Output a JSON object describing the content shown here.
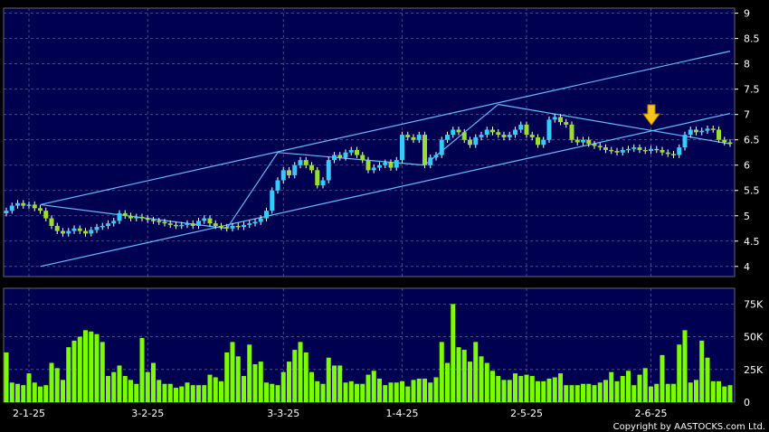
{
  "chart_data": [
    {
      "type": "candlestick",
      "ylim": [
        3.8,
        9.1
      ],
      "yticks": [
        "4",
        "4.5",
        "5",
        "5.5",
        "6",
        "6.5",
        "7",
        "7.5",
        "8",
        "8.5",
        "9"
      ],
      "xticks": [
        "2-1-25",
        "3-2-25",
        "3-3-25",
        "1-4-25",
        "2-5-25",
        "2-6-25"
      ],
      "grid": true,
      "close": [
        5.1,
        5.2,
        5.25,
        5.2,
        5.22,
        5.15,
        5.1,
        4.95,
        4.8,
        4.7,
        4.65,
        4.7,
        4.75,
        4.7,
        4.65,
        4.72,
        4.78,
        4.8,
        4.85,
        4.9,
        5.05,
        5.0,
        4.95,
        4.98,
        4.95,
        4.92,
        4.9,
        4.88,
        4.85,
        4.82,
        4.8,
        4.82,
        4.85,
        4.8,
        4.9,
        4.95,
        4.85,
        4.8,
        4.78,
        4.75,
        4.8,
        4.78,
        4.82,
        4.85,
        4.88,
        4.95,
        5.1,
        5.5,
        5.7,
        5.9,
        5.8,
        6.0,
        6.1,
        6.0,
        5.9,
        5.6,
        5.7,
        6.1,
        6.2,
        6.15,
        6.25,
        6.3,
        6.2,
        6.1,
        5.9,
        5.95,
        6.0,
        6.05,
        5.95,
        6.1,
        6.6,
        6.55,
        6.5,
        6.6,
        6.0,
        6.15,
        6.2,
        6.5,
        6.6,
        6.7,
        6.65,
        6.5,
        6.4,
        6.55,
        6.6,
        6.7,
        6.65,
        6.6,
        6.55,
        6.6,
        6.7,
        6.8,
        6.6,
        6.55,
        6.4,
        6.5,
        6.9,
        6.95,
        6.85,
        6.8,
        6.5,
        6.45,
        6.5,
        6.42,
        6.38,
        6.35,
        6.3,
        6.28,
        6.25,
        6.3,
        6.32,
        6.35,
        6.3,
        6.28,
        6.32,
        6.3,
        6.25,
        6.22,
        6.2,
        6.35,
        6.6,
        6.7,
        6.65,
        6.68,
        6.72,
        6.7,
        6.5,
        6.45,
        6.42
      ],
      "volume": [
        38000,
        15000,
        14000,
        13000,
        22000,
        15000,
        12000,
        13000,
        30000,
        26000,
        17000,
        42000,
        47000,
        50000,
        55000,
        54000,
        52000,
        46000,
        20000,
        23000,
        28000,
        20000,
        17000,
        14000,
        49000,
        23000,
        30000,
        17000,
        14000,
        14000,
        11000,
        12000,
        15000,
        13000,
        13000,
        13000,
        21000,
        19000,
        16000,
        38000,
        46000,
        35000,
        20000,
        44000,
        29000,
        31000,
        15000,
        14000,
        13000,
        23000,
        31000,
        40000,
        46000,
        38000,
        23000,
        16000,
        14000,
        34000,
        28000,
        28000,
        15000,
        16000,
        14000,
        14000,
        21000,
        24000,
        18000,
        13000,
        15000,
        15000,
        16000,
        12000,
        17000,
        18000,
        18000,
        15000,
        19000,
        46000,
        30000,
        75000,
        42000,
        40000,
        31000,
        46000,
        35000,
        30000,
        24000,
        20000,
        17000,
        17000,
        22000,
        20000,
        21000,
        20000,
        16000,
        16000,
        18000,
        19000,
        22000,
        13000,
        13000,
        13000,
        14000,
        14000,
        13000,
        15000,
        17000,
        23000,
        16000,
        20000,
        24000,
        13000,
        21000,
        26000,
        12000,
        14000,
        36000,
        14000,
        14000,
        44000,
        55000,
        15000,
        17000,
        47000,
        34000,
        16000,
        16000,
        12000,
        13000
      ],
      "ylim_volume": [
        0,
        87000
      ],
      "yticks_volume": [
        "0",
        "25K",
        "50K",
        "75K"
      ],
      "watermark": "Copyright by AASTOCKS.com Ltd."
    }
  ]
}
